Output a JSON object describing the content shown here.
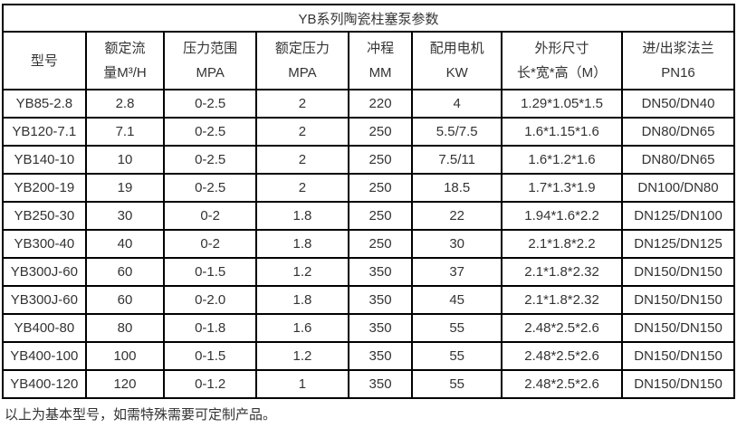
{
  "table": {
    "title": "YB系列陶瓷柱塞泵参数",
    "columns": [
      {
        "id": "model",
        "lines": [
          "型号"
        ]
      },
      {
        "id": "rated-flow",
        "lines": [
          "额定流",
          "量M³/H"
        ]
      },
      {
        "id": "pressure-range",
        "lines": [
          "压力范围",
          "MPA"
        ]
      },
      {
        "id": "rated-pressure",
        "lines": [
          "额定压力",
          "MPA"
        ]
      },
      {
        "id": "stroke",
        "lines": [
          "冲程",
          "MM"
        ]
      },
      {
        "id": "motor-power",
        "lines": [
          "配用电机",
          "KW"
        ]
      },
      {
        "id": "dimensions",
        "lines": [
          "外形尺寸",
          "长*宽*高（M）"
        ]
      },
      {
        "id": "flange",
        "lines": [
          "进/出浆法兰",
          "PN16"
        ]
      }
    ],
    "rows": [
      [
        "YB85-2.8",
        "2.8",
        "0-2.5",
        "2",
        "220",
        "4",
        "1.29*1.05*1.5",
        "DN50/DN40"
      ],
      [
        "YB120-7.1",
        "7.1",
        "0-2.5",
        "2",
        "250",
        "5.5/7.5",
        "1.6*1.15*1.6",
        "DN80/DN65"
      ],
      [
        "YB140-10",
        "10",
        "0-2.5",
        "2",
        "250",
        "7.5/11",
        "1.6*1.2*1.6",
        "DN80/DN65"
      ],
      [
        "YB200-19",
        "19",
        "0-2.5",
        "2",
        "250",
        "18.5",
        "1.7*1.3*1.9",
        "DN100/DN80"
      ],
      [
        "YB250-30",
        "30",
        "0-2",
        "1.8",
        "250",
        "22",
        "1.94*1.6*2.2",
        "DN125/DN100"
      ],
      [
        "YB300-40",
        "40",
        "0-2",
        "1.8",
        "250",
        "30",
        "2.1*1.8*2.2",
        "DN125/DN125"
      ],
      [
        "YB300J-60",
        "60",
        "0-1.5",
        "1.2",
        "350",
        "37",
        "2.1*1.8*2.32",
        "DN150/DN150"
      ],
      [
        "YB300J-60",
        "60",
        "0-2.0",
        "1.8",
        "350",
        "45",
        "2.1*1.8*2.32",
        "DN150/DN150"
      ],
      [
        "YB400-80",
        "80",
        "0-1.8",
        "1.6",
        "350",
        "55",
        "2.48*2.5*2.6",
        "DN150/DN150"
      ],
      [
        "YB400-100",
        "100",
        "0-1.5",
        "1.2",
        "350",
        "55",
        "2.48*2.5*2.6",
        "DN150/DN150"
      ],
      [
        "YB400-120",
        "120",
        "0-1.2",
        "1",
        "350",
        "55",
        "2.48*2.5*2.6",
        "DN150/DN150"
      ]
    ]
  },
  "footer": {
    "note": "以上为基本型号，如需特殊需要可定制产品。"
  },
  "colors": {
    "border": "#000000",
    "text": "#333333",
    "background": "#ffffff"
  }
}
